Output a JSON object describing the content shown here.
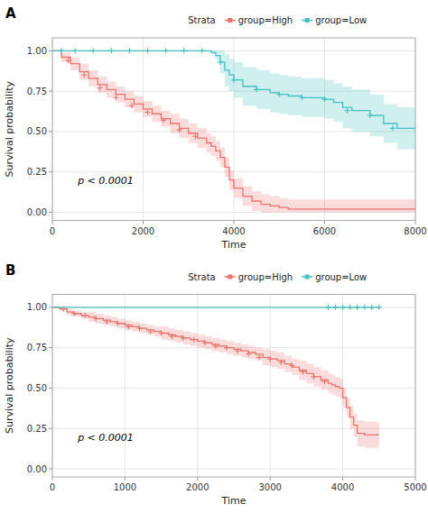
{
  "chart_data": [
    {
      "type": "step",
      "title": "A",
      "legend_title": "Strata",
      "x_label": "Time",
      "y_label": "Survival probability",
      "annotations": [
        "p < 0.0001"
      ],
      "xlim": [
        0,
        8000
      ],
      "ylim": [
        -0.05,
        1.08
      ],
      "xticks": [
        0,
        2000,
        4000,
        6000,
        8000
      ],
      "yticks": [
        {
          "value": 0.0,
          "label": "0.00"
        },
        0.25,
        {
          "value": 0.5,
          "label": "0.50"
        },
        0.75,
        {
          "value": 1.0,
          "label": "1.00"
        }
      ],
      "grid": true,
      "legend": "top",
      "series": [
        {
          "name": "group=High",
          "color": "#E8736E",
          "x": [
            0,
            200,
            400,
            600,
            800,
            1000,
            1200,
            1400,
            1600,
            1800,
            2000,
            2200,
            2400,
            2600,
            2800,
            3000,
            3200,
            3400,
            3500,
            3600,
            3700,
            3800,
            3900,
            4000,
            4200,
            4400,
            4600,
            4800,
            5000,
            5200,
            5400,
            5600,
            5800,
            6000,
            6200,
            6400,
            6600,
            7000,
            8000
          ],
          "values": [
            1.0,
            0.96,
            0.92,
            0.87,
            0.83,
            0.79,
            0.76,
            0.73,
            0.7,
            0.67,
            0.64,
            0.61,
            0.58,
            0.55,
            0.52,
            0.49,
            0.46,
            0.43,
            0.41,
            0.38,
            0.34,
            0.28,
            0.2,
            0.15,
            0.1,
            0.07,
            0.05,
            0.04,
            0.03,
            0.02,
            0.02,
            0.02,
            0.02,
            0.02,
            0.02,
            0.02,
            0.02,
            0.02,
            0.02
          ],
          "upper": [
            1.0,
            0.99,
            0.96,
            0.92,
            0.88,
            0.84,
            0.81,
            0.78,
            0.75,
            0.72,
            0.69,
            0.66,
            0.63,
            0.61,
            0.58,
            0.55,
            0.52,
            0.49,
            0.47,
            0.44,
            0.4,
            0.34,
            0.26,
            0.21,
            0.16,
            0.13,
            0.11,
            0.1,
            0.09,
            0.08,
            0.08,
            0.08,
            0.08,
            0.08,
            0.08,
            0.08,
            0.08,
            0.08,
            0.08
          ],
          "lower": [
            1.0,
            0.93,
            0.88,
            0.82,
            0.78,
            0.74,
            0.71,
            0.68,
            0.65,
            0.62,
            0.59,
            0.56,
            0.53,
            0.49,
            0.46,
            0.43,
            0.4,
            0.37,
            0.35,
            0.32,
            0.28,
            0.22,
            0.14,
            0.09,
            0.04,
            0.01,
            0.0,
            0.0,
            0.0,
            0.0,
            0.0,
            0.0,
            0.0,
            0.0,
            0.0,
            0.0,
            0.0,
            0.0,
            0.0
          ],
          "censor_x": [
            350,
            700,
            1050,
            1400,
            1750,
            2100,
            2450,
            2800,
            3150
          ],
          "censor_values": [
            0.94,
            0.85,
            0.77,
            0.71,
            0.66,
            0.62,
            0.57,
            0.51,
            0.47
          ]
        },
        {
          "name": "group=Low",
          "color": "#44BFC1",
          "x": [
            0,
            500,
            1000,
            1500,
            2000,
            2500,
            3000,
            3500,
            3600,
            3700,
            3800,
            3900,
            4000,
            4200,
            4500,
            4800,
            5000,
            5200,
            5500,
            5800,
            6000,
            6200,
            6400,
            6600,
            7000,
            7300,
            7600,
            8000
          ],
          "values": [
            1.0,
            1.0,
            1.0,
            1.0,
            1.0,
            1.0,
            1.0,
            0.99,
            0.97,
            0.93,
            0.88,
            0.85,
            0.82,
            0.78,
            0.76,
            0.74,
            0.73,
            0.72,
            0.71,
            0.71,
            0.7,
            0.68,
            0.65,
            0.63,
            0.6,
            0.55,
            0.52,
            0.52
          ],
          "upper": [
            1.0,
            1.0,
            1.0,
            1.0,
            1.0,
            1.0,
            1.0,
            1.0,
            1.0,
            1.0,
            0.98,
            0.95,
            0.93,
            0.9,
            0.88,
            0.86,
            0.85,
            0.84,
            0.83,
            0.83,
            0.82,
            0.8,
            0.78,
            0.76,
            0.73,
            0.67,
            0.65,
            0.65
          ],
          "lower": [
            1.0,
            1.0,
            1.0,
            1.0,
            1.0,
            1.0,
            1.0,
            0.98,
            0.94,
            0.86,
            0.78,
            0.75,
            0.71,
            0.66,
            0.64,
            0.62,
            0.61,
            0.6,
            0.59,
            0.59,
            0.58,
            0.56,
            0.52,
            0.5,
            0.47,
            0.43,
            0.39,
            0.39
          ],
          "censor_x": [
            200,
            500,
            900,
            1300,
            1700,
            2100,
            2500,
            2900,
            3300,
            3700,
            4000,
            4500,
            5000,
            5500,
            6000,
            6500,
            7000,
            7500
          ],
          "censor_values": [
            1.0,
            1.0,
            1.0,
            1.0,
            1.0,
            1.0,
            1.0,
            1.0,
            1.0,
            0.93,
            0.82,
            0.76,
            0.73,
            0.71,
            0.7,
            0.63,
            0.6,
            0.52
          ]
        }
      ]
    },
    {
      "type": "step",
      "title": "B",
      "legend_title": "Strata",
      "x_label": "Time",
      "y_label": "Survival probability",
      "annotations": [
        "p < 0.0001"
      ],
      "xlim": [
        0,
        5000
      ],
      "ylim": [
        -0.05,
        1.08
      ],
      "xticks": [
        0,
        1000,
        2000,
        3000,
        4000,
        5000
      ],
      "yticks": [
        {
          "value": 0.0,
          "label": "0.00"
        },
        0.25,
        {
          "value": 0.5,
          "label": "0.50"
        },
        0.75,
        {
          "value": 1.0,
          "label": "1.00"
        }
      ],
      "grid": true,
      "legend": "top",
      "series": [
        {
          "name": "group=High",
          "color": "#E8736E",
          "x": [
            0,
            100,
            200,
            300,
            400,
            500,
            600,
            700,
            800,
            900,
            1000,
            1100,
            1200,
            1300,
            1400,
            1500,
            1600,
            1700,
            1800,
            1900,
            2000,
            2100,
            2200,
            2300,
            2400,
            2500,
            2600,
            2700,
            2800,
            2900,
            3000,
            3100,
            3200,
            3300,
            3400,
            3500,
            3600,
            3700,
            3800,
            3850,
            3900,
            3950,
            4000,
            4050,
            4100,
            4150,
            4200,
            4300,
            4400,
            4500
          ],
          "values": [
            1.0,
            0.99,
            0.97,
            0.96,
            0.95,
            0.94,
            0.93,
            0.92,
            0.91,
            0.9,
            0.89,
            0.88,
            0.87,
            0.86,
            0.85,
            0.84,
            0.83,
            0.82,
            0.81,
            0.8,
            0.79,
            0.78,
            0.77,
            0.76,
            0.75,
            0.74,
            0.73,
            0.72,
            0.71,
            0.69,
            0.68,
            0.67,
            0.65,
            0.63,
            0.61,
            0.59,
            0.57,
            0.55,
            0.53,
            0.52,
            0.51,
            0.5,
            0.44,
            0.38,
            0.32,
            0.27,
            0.22,
            0.21,
            0.21,
            0.21
          ],
          "upper": [
            1.0,
            1.0,
            0.99,
            0.98,
            0.97,
            0.97,
            0.96,
            0.95,
            0.94,
            0.93,
            0.92,
            0.91,
            0.9,
            0.89,
            0.88,
            0.88,
            0.87,
            0.86,
            0.85,
            0.84,
            0.83,
            0.82,
            0.81,
            0.8,
            0.79,
            0.78,
            0.77,
            0.76,
            0.75,
            0.74,
            0.73,
            0.72,
            0.7,
            0.68,
            0.67,
            0.65,
            0.63,
            0.61,
            0.59,
            0.58,
            0.57,
            0.56,
            0.5,
            0.44,
            0.39,
            0.34,
            0.3,
            0.29,
            0.29,
            0.29
          ],
          "lower": [
            1.0,
            0.98,
            0.95,
            0.94,
            0.93,
            0.91,
            0.9,
            0.89,
            0.88,
            0.87,
            0.86,
            0.85,
            0.84,
            0.83,
            0.82,
            0.8,
            0.79,
            0.78,
            0.77,
            0.76,
            0.75,
            0.74,
            0.73,
            0.72,
            0.71,
            0.7,
            0.69,
            0.68,
            0.67,
            0.64,
            0.63,
            0.62,
            0.6,
            0.58,
            0.55,
            0.53,
            0.51,
            0.49,
            0.47,
            0.46,
            0.45,
            0.44,
            0.38,
            0.32,
            0.25,
            0.2,
            0.14,
            0.13,
            0.13,
            0.13
          ],
          "censor_x": [
            150,
            300,
            450,
            600,
            750,
            900,
            1050,
            1200,
            1350,
            1500,
            1650,
            1800,
            1950,
            2100,
            2250,
            2400,
            2550,
            2700,
            2850,
            3000,
            3150,
            3300,
            3450,
            3600,
            3750
          ],
          "censor_values": [
            0.99,
            0.96,
            0.95,
            0.93,
            0.91,
            0.9,
            0.88,
            0.87,
            0.85,
            0.84,
            0.82,
            0.81,
            0.8,
            0.78,
            0.76,
            0.75,
            0.73,
            0.71,
            0.69,
            0.68,
            0.66,
            0.64,
            0.6,
            0.57,
            0.54
          ]
        },
        {
          "name": "group=Low",
          "color": "#44BFC1",
          "x": [
            0,
            4500
          ],
          "values": [
            1.0,
            1.0
          ],
          "upper": [
            1.0,
            1.0
          ],
          "lower": [
            1.0,
            1.0
          ],
          "censor_x": [
            3800,
            3900,
            4000,
            4100,
            4200,
            4300,
            4400,
            4500
          ],
          "censor_values": [
            1.0,
            1.0,
            1.0,
            1.0,
            1.0,
            1.0,
            1.0,
            1.0
          ]
        }
      ]
    }
  ]
}
